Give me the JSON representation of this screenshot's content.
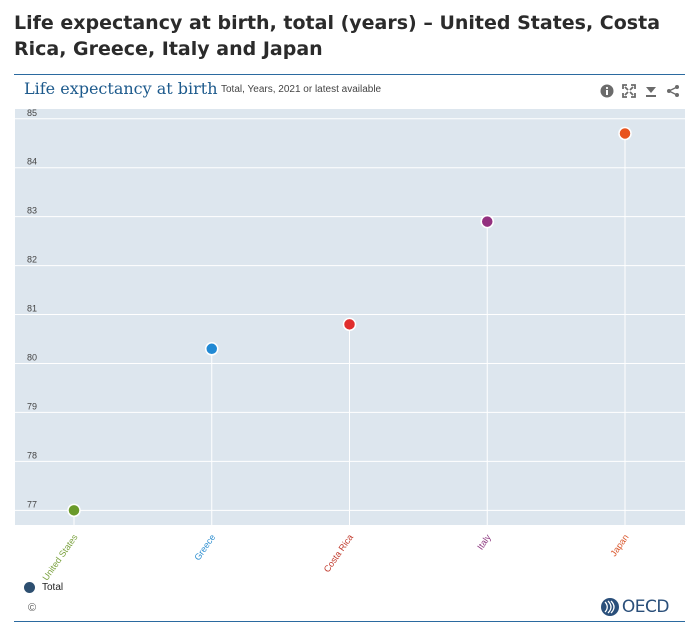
{
  "page_title": "Life expectancy at birth, total (years) – United States, Costa Rica, Greece, Italy and Japan",
  "chart_header": {
    "title": "Life expectancy at birth",
    "subtitle": "Total, Years, 2021 or latest available"
  },
  "toolbar": {
    "icons": [
      "info-icon",
      "fullscreen-icon",
      "download-icon",
      "share-icon"
    ]
  },
  "legend": {
    "label": "Total",
    "color": "#2d4f70"
  },
  "footer": {
    "copyright": "©",
    "logo_text": "OECD"
  },
  "chart_data": {
    "type": "scatter",
    "title": "Life expectancy at birth",
    "xlabel": "",
    "ylabel": "",
    "ylim": [
      76.7,
      85.2
    ],
    "yticks": [
      77,
      78,
      79,
      80,
      81,
      82,
      83,
      84,
      85
    ],
    "grid": true,
    "categories": [
      "United States",
      "Greece",
      "Costa Rica",
      "Italy",
      "Japan"
    ],
    "category_colors": [
      "#7ba23f",
      "#2f8fd0",
      "#c0392b",
      "#8e3a80",
      "#d9552a"
    ],
    "series": [
      {
        "name": "Total",
        "values": [
          77.0,
          80.3,
          80.8,
          82.9,
          84.7
        ],
        "colors": [
          "#6a9a2a",
          "#2189d4",
          "#e02d2d",
          "#93307f",
          "#e8531e"
        ]
      }
    ]
  }
}
